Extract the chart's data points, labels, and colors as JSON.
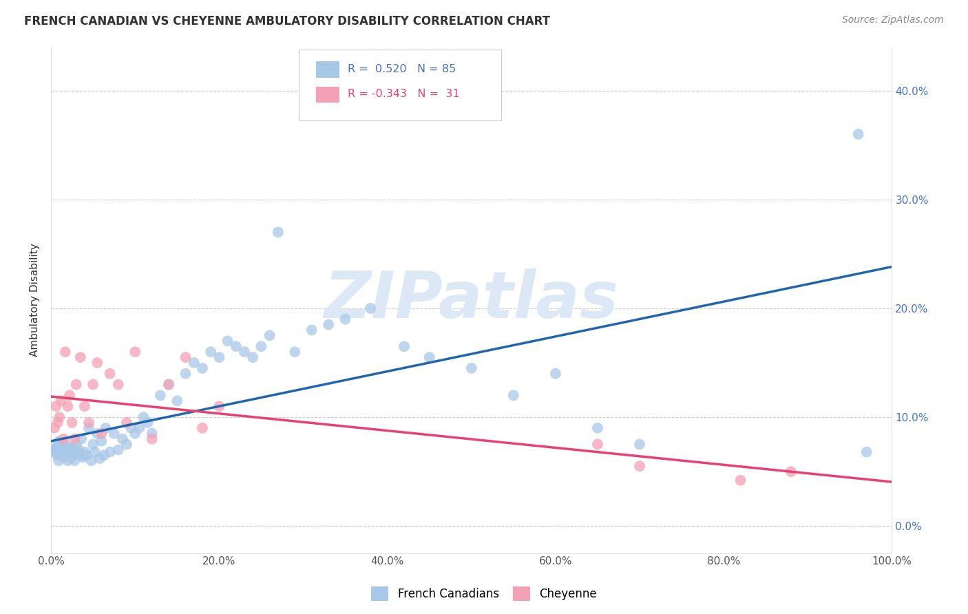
{
  "title": "FRENCH CANADIAN VS CHEYENNE AMBULATORY DISABILITY CORRELATION CHART",
  "source": "Source: ZipAtlas.com",
  "ylabel": "Ambulatory Disability",
  "xlim": [
    0.0,
    1.0
  ],
  "ylim": [
    -0.025,
    0.44
  ],
  "blue_R": 0.52,
  "blue_N": 85,
  "pink_R": -0.343,
  "pink_N": 31,
  "blue_color": "#a8c8e8",
  "pink_color": "#f4a0b5",
  "blue_line_color": "#2166ac",
  "pink_line_color": "#e84070",
  "legend_text_color": "#4472c4",
  "background_color": "#ffffff",
  "grid_color": "#cccccc",
  "title_color": "#333333",
  "source_color": "#888888",
  "right_tick_color": "#4472c4",
  "watermark_text": "ZIPatlas",
  "watermark_color": "#dce8f5",
  "x_tick_vals": [
    0.0,
    0.2,
    0.4,
    0.6,
    0.8,
    1.0
  ],
  "y_tick_vals": [
    0.0,
    0.1,
    0.2,
    0.3,
    0.4
  ],
  "blue_x": [
    0.003,
    0.005,
    0.006,
    0.007,
    0.008,
    0.009,
    0.01,
    0.01,
    0.011,
    0.012,
    0.013,
    0.014,
    0.015,
    0.015,
    0.016,
    0.017,
    0.018,
    0.019,
    0.02,
    0.02,
    0.021,
    0.022,
    0.023,
    0.024,
    0.025,
    0.026,
    0.027,
    0.028,
    0.03,
    0.031,
    0.033,
    0.035,
    0.036,
    0.038,
    0.04,
    0.042,
    0.045,
    0.048,
    0.05,
    0.052,
    0.055,
    0.058,
    0.06,
    0.063,
    0.065,
    0.07,
    0.075,
    0.08,
    0.085,
    0.09,
    0.095,
    0.1,
    0.105,
    0.11,
    0.115,
    0.12,
    0.13,
    0.14,
    0.15,
    0.16,
    0.17,
    0.18,
    0.19,
    0.2,
    0.21,
    0.22,
    0.23,
    0.24,
    0.25,
    0.26,
    0.27,
    0.29,
    0.31,
    0.33,
    0.35,
    0.38,
    0.42,
    0.45,
    0.5,
    0.55,
    0.6,
    0.65,
    0.7,
    0.96,
    0.97
  ],
  "blue_y": [
    0.07,
    0.068,
    0.072,
    0.065,
    0.075,
    0.06,
    0.073,
    0.078,
    0.068,
    0.065,
    0.07,
    0.068,
    0.063,
    0.072,
    0.075,
    0.065,
    0.068,
    0.072,
    0.06,
    0.07,
    0.065,
    0.068,
    0.072,
    0.063,
    0.07,
    0.065,
    0.068,
    0.06,
    0.075,
    0.068,
    0.07,
    0.065,
    0.08,
    0.063,
    0.068,
    0.065,
    0.09,
    0.06,
    0.075,
    0.068,
    0.085,
    0.062,
    0.078,
    0.065,
    0.09,
    0.068,
    0.085,
    0.07,
    0.08,
    0.075,
    0.09,
    0.085,
    0.09,
    0.1,
    0.095,
    0.085,
    0.12,
    0.13,
    0.115,
    0.14,
    0.15,
    0.145,
    0.16,
    0.155,
    0.17,
    0.165,
    0.16,
    0.155,
    0.165,
    0.175,
    0.27,
    0.16,
    0.18,
    0.185,
    0.19,
    0.2,
    0.165,
    0.155,
    0.145,
    0.12,
    0.14,
    0.09,
    0.075,
    0.36,
    0.068
  ],
  "pink_x": [
    0.004,
    0.006,
    0.008,
    0.01,
    0.012,
    0.015,
    0.017,
    0.02,
    0.022,
    0.025,
    0.028,
    0.03,
    0.035,
    0.04,
    0.045,
    0.05,
    0.055,
    0.06,
    0.07,
    0.08,
    0.09,
    0.1,
    0.12,
    0.14,
    0.16,
    0.18,
    0.2,
    0.65,
    0.7,
    0.82,
    0.88
  ],
  "pink_y": [
    0.09,
    0.11,
    0.095,
    0.1,
    0.115,
    0.08,
    0.16,
    0.11,
    0.12,
    0.095,
    0.08,
    0.13,
    0.155,
    0.11,
    0.095,
    0.13,
    0.15,
    0.085,
    0.14,
    0.13,
    0.095,
    0.16,
    0.08,
    0.13,
    0.155,
    0.09,
    0.11,
    0.075,
    0.055,
    0.042,
    0.05
  ]
}
